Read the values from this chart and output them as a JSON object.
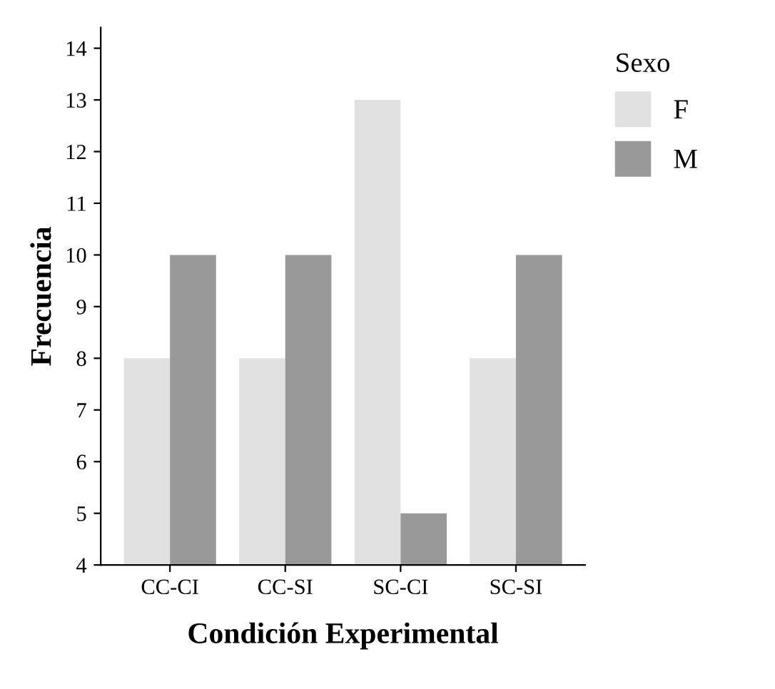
{
  "chart_data": {
    "type": "bar",
    "xlabel": "Condición Experimental",
    "ylabel": "Frecuencia",
    "legend_title": "Sexo",
    "legend": "right",
    "categories": [
      "CC-CI",
      "CC-SI",
      "SC-CI",
      "SC-SI"
    ],
    "series": [
      {
        "name": "F",
        "color": "#e1e1e1",
        "values": [
          8,
          8,
          13,
          8
        ]
      },
      {
        "name": "M",
        "color": "#999999",
        "values": [
          10,
          10,
          5,
          10
        ]
      }
    ],
    "ylim": [
      4,
      14.4
    ],
    "yticks": [
      4,
      5,
      6,
      7,
      8,
      9,
      10,
      11,
      12,
      13,
      14
    ],
    "grid": false
  }
}
